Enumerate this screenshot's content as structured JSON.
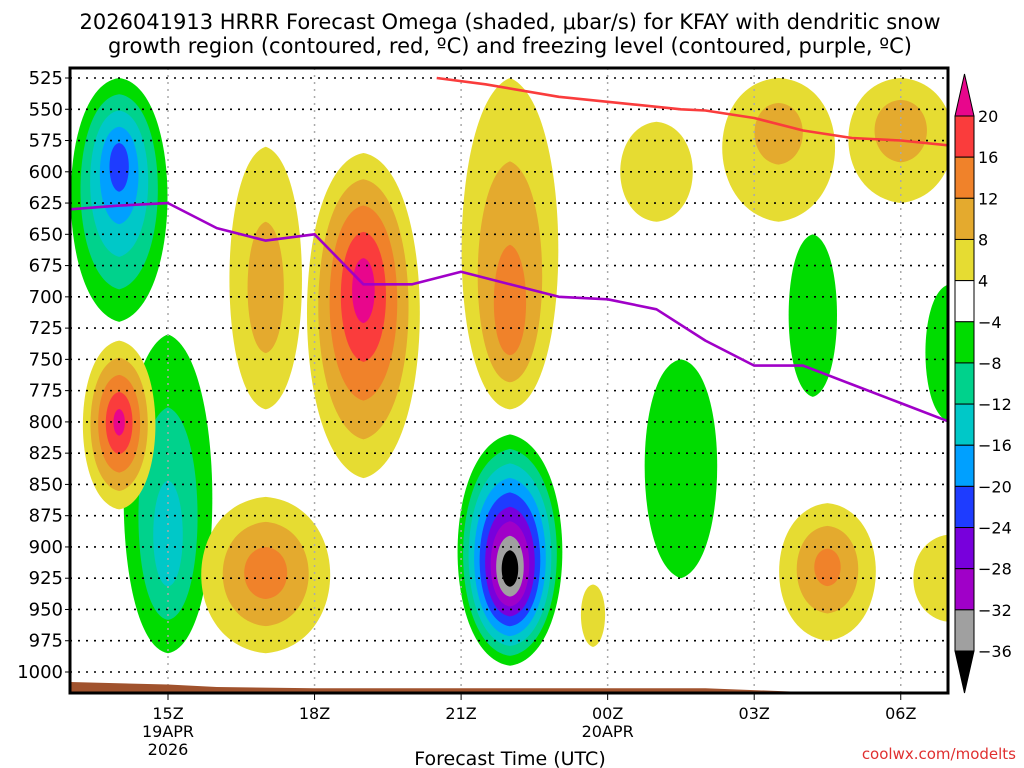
{
  "chart_data": {
    "type": "heatmap",
    "title_lines": [
      "2026041913 HRRR Forecast Omega (shaded, μbar/s) for KFAY with dendritic snow",
      "growth region (contoured, red, ºC) and freezing level (contoured, purple, ºC)"
    ],
    "xlabel": "Forecast Time (UTC)",
    "ylabel": "",
    "credit": "coolwx.com/modelts",
    "x_range_hours": [
      -2.0,
      16.0
    ],
    "x_ticks": [
      {
        "hour": 0,
        "label": "15Z",
        "sub": [
          "19APR",
          "2026"
        ]
      },
      {
        "hour": 3,
        "label": "18Z",
        "sub": []
      },
      {
        "hour": 6,
        "label": "21Z",
        "sub": []
      },
      {
        "hour": 9,
        "label": "00Z",
        "sub": [
          "20APR"
        ]
      },
      {
        "hour": 12,
        "label": "03Z",
        "sub": []
      },
      {
        "hour": 15,
        "label": "06Z",
        "sub": []
      }
    ],
    "y_range_hpa": [
      525,
      1000
    ],
    "y_ticks": [
      525,
      550,
      575,
      600,
      625,
      650,
      675,
      700,
      725,
      750,
      775,
      800,
      825,
      850,
      875,
      900,
      925,
      950,
      975,
      1000
    ],
    "grid": true,
    "colorbar": {
      "placement": "right",
      "levels": [
        {
          "min": 20,
          "max": null,
          "color": "#e8068c",
          "label": ""
        },
        {
          "min": 16,
          "max": 20,
          "color": "#fa3c3c",
          "label": "20"
        },
        {
          "min": 12,
          "max": 16,
          "color": "#f0822a",
          "label": "16"
        },
        {
          "min": 8,
          "max": 12,
          "color": "#e4aa2e",
          "label": "12"
        },
        {
          "min": 4,
          "max": 8,
          "color": "#e6dc32",
          "label": "8"
        },
        {
          "min": -4,
          "max": 4,
          "color": "#ffffff",
          "label": "4"
        },
        {
          "min": -8,
          "max": -4,
          "color": "#00dc00",
          "label": "-4"
        },
        {
          "min": -12,
          "max": -8,
          "color": "#00d28c",
          "label": "-8"
        },
        {
          "min": -16,
          "max": -12,
          "color": "#00c8c8",
          "label": "-12"
        },
        {
          "min": -20,
          "max": -16,
          "color": "#00a0ff",
          "label": "-16"
        },
        {
          "min": -24,
          "max": -20,
          "color": "#1e3cff",
          "label": "-20"
        },
        {
          "min": -28,
          "max": -24,
          "color": "#7800dc",
          "label": "-24"
        },
        {
          "min": -32,
          "max": -28,
          "color": "#a000c8",
          "label": "-28"
        },
        {
          "min": -36,
          "max": -32,
          "color": "#a0a0a0",
          "label": "-32"
        },
        {
          "min": null,
          "max": -36,
          "color": "#000000",
          "label": "-36"
        }
      ]
    },
    "omega_features": [
      {
        "name": "upward-motion-core-early",
        "center_hour": -1.0,
        "center_hpa": 590,
        "peak": -22,
        "hw_hours": 1.2,
        "top_hpa": 525,
        "bottom_hpa": 720
      },
      {
        "name": "upward-motion-lower-early",
        "center_hour": 0.0,
        "center_hpa": 905,
        "peak": -14,
        "hw_hours": 1.1,
        "top_hpa": 730,
        "bottom_hpa": 985
      },
      {
        "name": "downward-motion-800",
        "center_hour": -1.0,
        "center_hpa": 800,
        "peak": 21,
        "hw_hours": 0.9,
        "top_hpa": 735,
        "bottom_hpa": 870
      },
      {
        "name": "downward-motion-700-a",
        "center_hour": 2.0,
        "center_hpa": 700,
        "peak": 10,
        "hw_hours": 0.9,
        "top_hpa": 580,
        "bottom_hpa": 790
      },
      {
        "name": "downward-motion-700-b",
        "center_hour": 4.0,
        "center_hpa": 690,
        "peak": 22,
        "hw_hours": 1.4,
        "top_hpa": 585,
        "bottom_hpa": 845
      },
      {
        "name": "downward-motion-925",
        "center_hour": 2.0,
        "center_hpa": 920,
        "peak": 14,
        "hw_hours": 1.6,
        "top_hpa": 860,
        "bottom_hpa": 985
      },
      {
        "name": "downward-motion-720",
        "center_hour": 7.0,
        "center_hpa": 725,
        "peak": 14,
        "hw_hours": 1.2,
        "top_hpa": 525,
        "bottom_hpa": 790
      },
      {
        "name": "strong-upward-motion-925",
        "center_hour": 7.0,
        "center_hpa": 920,
        "peak": -40,
        "hw_hours": 1.3,
        "top_hpa": 810,
        "bottom_hpa": 995
      },
      {
        "name": "downward-motion-580",
        "center_hour": 10.0,
        "center_hpa": 600,
        "peak": 6,
        "hw_hours": 0.9,
        "top_hpa": 560,
        "bottom_hpa": 640
      },
      {
        "name": "downward-motion-545-a",
        "center_hour": 12.5,
        "center_hpa": 560,
        "peak": 9,
        "hw_hours": 1.4,
        "top_hpa": 525,
        "bottom_hpa": 640
      },
      {
        "name": "downward-motion-545-b",
        "center_hour": 15.0,
        "center_hpa": 560,
        "peak": 10,
        "hw_hours": 1.3,
        "top_hpa": 525,
        "bottom_hpa": 625
      },
      {
        "name": "upward-motion-700-late",
        "center_hour": 13.2,
        "center_hpa": 710,
        "peak": -6,
        "hw_hours": 0.6,
        "top_hpa": 650,
        "bottom_hpa": 780
      },
      {
        "name": "upward-motion-780-diag",
        "center_hour": 10.5,
        "center_hpa": 810,
        "peak": -6,
        "hw_hours": 0.9,
        "top_hpa": 750,
        "bottom_hpa": 925
      },
      {
        "name": "downward-motion-920-late",
        "center_hour": 13.5,
        "center_hpa": 915,
        "peak": 13,
        "hw_hours": 1.2,
        "top_hpa": 865,
        "bottom_hpa": 975
      },
      {
        "name": "upward-motion-750-edge",
        "center_hour": 16.0,
        "center_hpa": 740,
        "peak": -6,
        "hw_hours": 0.6,
        "top_hpa": 690,
        "bottom_hpa": 800
      },
      {
        "name": "downward-motion-930-small",
        "center_hour": 8.7,
        "center_hpa": 945,
        "peak": 5,
        "hw_hours": 0.3,
        "top_hpa": 930,
        "bottom_hpa": 980
      },
      {
        "name": "downward-motion-925-edge",
        "center_hour": 16.0,
        "center_hpa": 925,
        "peak": 6,
        "hw_hours": 0.9,
        "top_hpa": 890,
        "bottom_hpa": 960
      }
    ],
    "series": [
      {
        "name": "Dendritic snow growth region (-12°C isotherm)",
        "color": "#fa3c3c",
        "x_hours": [
          5.5,
          6.5,
          8.0,
          9.5,
          10.5,
          11.0,
          12.0,
          13.0,
          14.0,
          15.0,
          16.0
        ],
        "y_hpa": [
          525,
          530,
          540,
          546,
          550,
          551,
          557,
          567,
          573,
          575,
          579
        ]
      },
      {
        "name": "Freezing level (0°C isotherm)",
        "color": "#a000c8",
        "x_hours": [
          -2.0,
          -1.0,
          0.0,
          1.0,
          2.0,
          3.0,
          4.0,
          5.0,
          6.0,
          7.0,
          8.0,
          9.0,
          10.0,
          11.0,
          12.0,
          13.0,
          14.0,
          15.0,
          16.0
        ],
        "y_hpa": [
          630,
          627,
          625,
          645,
          655,
          650,
          690,
          690,
          680,
          690,
          700,
          702,
          710,
          735,
          755,
          755,
          770,
          785,
          800
        ]
      }
    ],
    "terrain": {
      "name": "surface",
      "color": "#a0522d",
      "x_hours": [
        -2.0,
        0.0,
        1.0,
        3.0,
        7.0,
        11.0,
        13.0,
        14.0,
        16.0
      ],
      "y_hpa": [
        1008,
        1010,
        1012,
        1013,
        1013,
        1013,
        1016,
        1019,
        1020
      ]
    }
  }
}
